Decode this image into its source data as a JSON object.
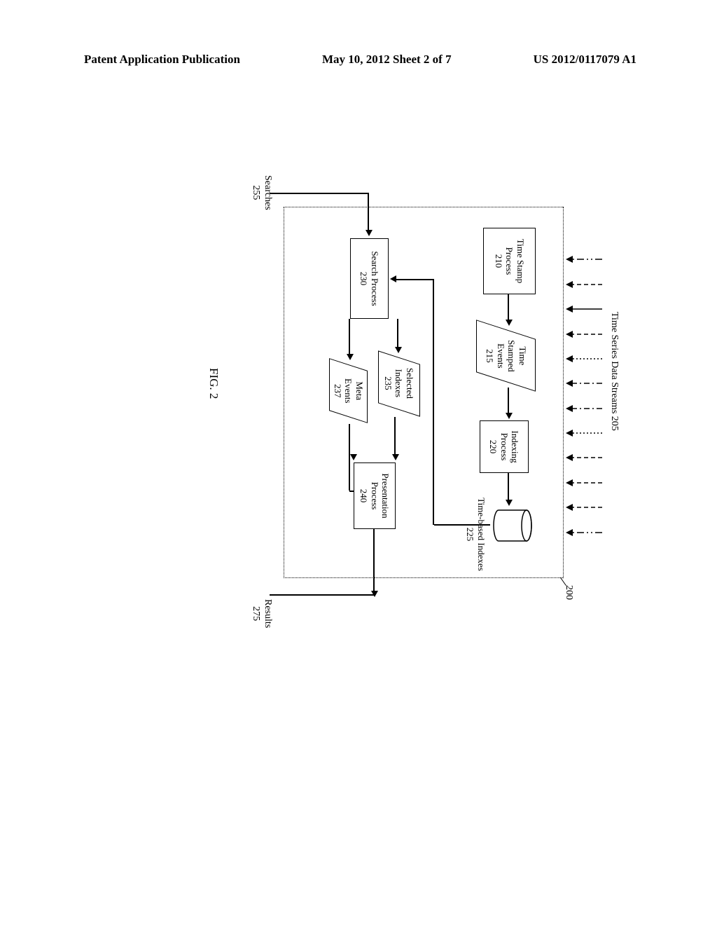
{
  "header": {
    "left": "Patent Application Publication",
    "center": "May 10, 2012  Sheet 2 of 7",
    "right": "US 2012/0117079 A1"
  },
  "diagram": {
    "ref_system": "200",
    "streams_label": "Time Series Data Streams  205",
    "searches_label": "Searches\n255",
    "results_label": "Results\n275",
    "timebased_label": "Time-based Indexes\n225",
    "figure_caption": "FIG. 2",
    "boxes": {
      "tsp": "Time Stamp\nProcess\n210",
      "tse": "Time\nStamped\nEvents\n215",
      "idx": "Indexing Process\n220",
      "search": "Search Process\n230",
      "selidx": "Selected\nIndexes\n235",
      "meta": "Meta\nEvents\n237",
      "pres": "Presentation\nProcess\n240"
    },
    "stream_styles": [
      "dashdotdot",
      "dash",
      "solid",
      "dash",
      "dot",
      "dashdot",
      "dashdot",
      "dot",
      "dash",
      "dash",
      "dash",
      "dashdotdot"
    ],
    "colors": {
      "line": "#000000",
      "bg": "#ffffff"
    }
  }
}
